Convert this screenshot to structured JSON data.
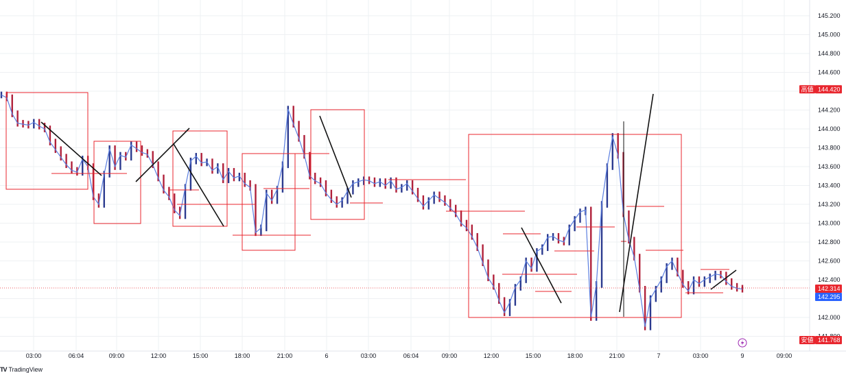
{
  "brand": {
    "logo_mark": "TV",
    "name": "TradingView"
  },
  "colors": {
    "price_line": "#5b7fe0",
    "candle_up": "#2b3a8f",
    "candle_down": "#b0203a",
    "annotation_red": "#e8262e",
    "annotation_black": "#111111",
    "grid": "#eef0f3",
    "last_price": "#2962ff",
    "current_price": "#e8262e",
    "high_low_badge": "#e8262e",
    "replay_icon": "#9c27b0"
  },
  "chart_data": {
    "type": "line",
    "y_axis": {
      "ticks": [
        "145.200",
        "145.000",
        "144.800",
        "144.600",
        "144.400",
        "144.200",
        "144.000",
        "143.800",
        "143.600",
        "143.400",
        "143.200",
        "143.000",
        "142.800",
        "142.600",
        "142.400",
        "142.200",
        "142.000",
        "141.800"
      ],
      "ylim": [
        141.75,
        145.33
      ]
    },
    "x_axis": {
      "tick_labels": [
        "03:00",
        "06:04",
        "09:00",
        "12:00",
        "15:00",
        "18:00",
        "21:00",
        "6",
        "03:00",
        "06:04",
        "09:00",
        "12:00",
        "15:00",
        "18:00",
        "21:00",
        "7",
        "03:00",
        "9",
        "09:00"
      ]
    },
    "price_labels": {
      "high": {
        "label": "高値",
        "value": "144.420"
      },
      "current": {
        "value": "142.314"
      },
      "last": {
        "value": "142.295"
      },
      "low": {
        "label": "安値",
        "value": "141.768"
      }
    },
    "series": [
      {
        "values": [
          144.36,
          144.33,
          144.16,
          144.06,
          144.05,
          144.04,
          144.07,
          144.03,
          144.0,
          143.86,
          143.78,
          143.7,
          143.62,
          143.56,
          143.54,
          143.68,
          143.6,
          143.28,
          143.2,
          143.52,
          143.79,
          143.6,
          143.72,
          143.7,
          143.83,
          143.79,
          143.75,
          143.73,
          143.62,
          143.48,
          143.35,
          143.28,
          143.14,
          143.08,
          143.38,
          143.66,
          143.71,
          143.64,
          143.65,
          143.56,
          143.6,
          143.46,
          143.55,
          143.48,
          143.5,
          143.42,
          143.38,
          142.9,
          142.95,
          143.32,
          143.24,
          143.36,
          143.62,
          144.21,
          144.05,
          143.9,
          143.72,
          143.5,
          143.45,
          143.42,
          143.32,
          143.25,
          143.2,
          143.24,
          143.34,
          143.42,
          143.44,
          143.46,
          143.45,
          143.42,
          143.44,
          143.4,
          143.45,
          143.36,
          143.38,
          143.42,
          143.34,
          143.26,
          143.18,
          143.24,
          143.3,
          143.26,
          143.22,
          143.16,
          143.1,
          143.0,
          142.95,
          142.86,
          142.74,
          142.58,
          142.42,
          142.33,
          142.18,
          142.05,
          142.16,
          142.32,
          142.4,
          142.6,
          142.52,
          142.7,
          142.74,
          142.85,
          142.86,
          142.82,
          142.8,
          142.95,
          143.04,
          143.12,
          143.14,
          142.0,
          142.35,
          143.2,
          143.6,
          143.92,
          143.72,
          143.1,
          142.82,
          142.64,
          142.3,
          141.9,
          142.2,
          142.3,
          142.4,
          142.54,
          142.6,
          142.47,
          142.35,
          142.28,
          142.4,
          142.36,
          142.4,
          142.43,
          142.46,
          142.45,
          142.38,
          142.33,
          142.31,
          142.3
        ]
      }
    ],
    "annotations": {
      "boxes": 7,
      "trend_lines": 7,
      "horizontal_levels": 19
    }
  }
}
